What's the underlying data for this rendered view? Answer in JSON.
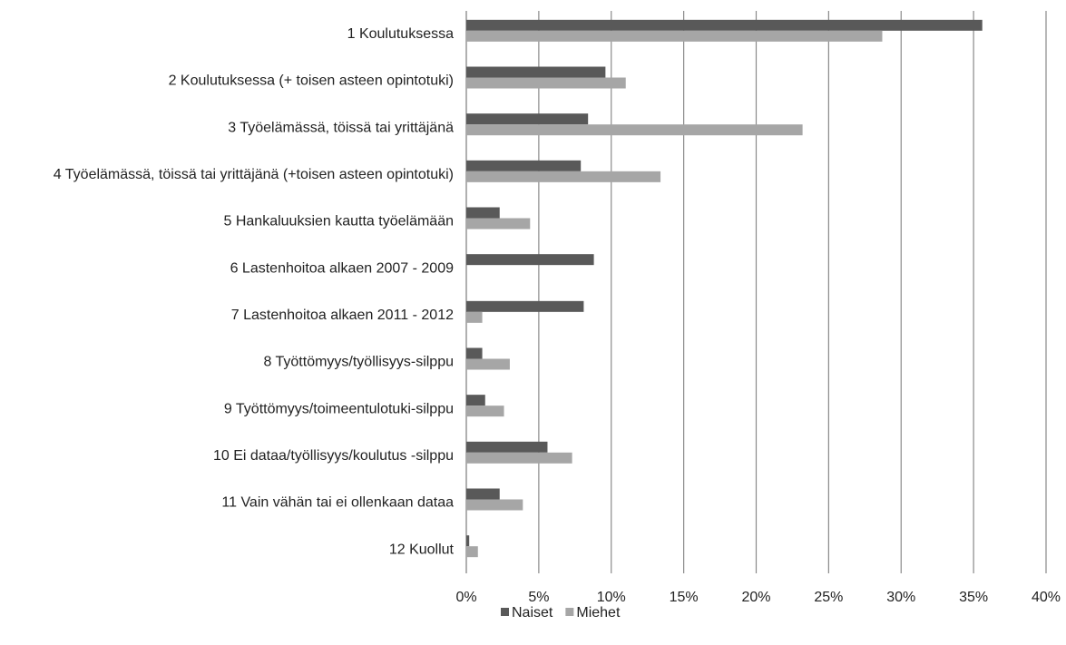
{
  "chart_data": {
    "type": "bar",
    "orientation": "horizontal",
    "categories": [
      "1 Koulutuksessa",
      "2 Koulutuksessa (+ toisen asteen opintotuki)",
      "3 Työelämässä, töissä tai yrittäjänä",
      "4 Työelämässä, töissä tai yrittäjänä (+toisen asteen opintotuki)",
      "5 Hankaluuksien kautta työelämään",
      "6 Lastenhoitoa alkaen 2007 - 2009",
      "7 Lastenhoitoa alkaen 2011 - 2012",
      "8 Työttömyys/työllisyys-silppu",
      "9 Työttömyys/toimeentulotuki-silppu",
      "10 Ei dataa/työllisyys/koulutus -silppu",
      "11 Vain vähän tai ei ollenkaan dataa",
      "12 Kuollut"
    ],
    "series": [
      {
        "name": "Naiset",
        "color": "#595959",
        "values": [
          35.6,
          9.6,
          8.4,
          7.9,
          2.3,
          8.8,
          8.1,
          1.1,
          1.3,
          5.6,
          2.3,
          0.2
        ]
      },
      {
        "name": "Miehet",
        "color": "#a6a6a6",
        "values": [
          28.7,
          11.0,
          23.2,
          13.4,
          4.4,
          0,
          1.1,
          3.0,
          2.6,
          7.3,
          3.9,
          0.8
        ]
      }
    ],
    "xlim": [
      0,
      40
    ],
    "xticks": [
      {
        "value": 0,
        "label": "0%"
      },
      {
        "value": 5,
        "label": "5%"
      },
      {
        "value": 10,
        "label": "10%"
      },
      {
        "value": 15,
        "label": "15%"
      },
      {
        "value": 20,
        "label": "20%"
      },
      {
        "value": 25,
        "label": "25%"
      },
      {
        "value": 30,
        "label": "30%"
      },
      {
        "value": 35,
        "label": "35%"
      },
      {
        "value": 40,
        "label": "40%"
      }
    ],
    "grid": true,
    "legend": "bottom"
  }
}
